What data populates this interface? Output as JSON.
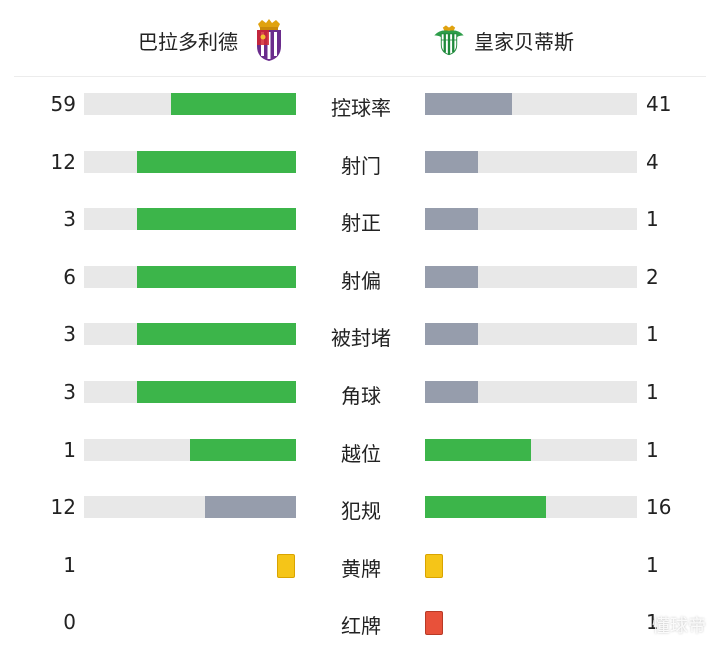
{
  "colors": {
    "win": "#3cb54a",
    "lose": "#969dac",
    "track": "#e8e8e8",
    "yellow": "#f5c518",
    "red": "#e8513a"
  },
  "header": {
    "home_team": "巴拉多利德",
    "away_team": "皇家贝蒂斯",
    "home_crest_icon": "real-valladolid-crest-icon",
    "away_crest_icon": "real-betis-crest-icon"
  },
  "stats": [
    {
      "label": "控球率",
      "home": "59",
      "away": "41",
      "home_fill": 0.59,
      "away_fill": 0.41,
      "home_color": "win",
      "away_color": "lose"
    },
    {
      "label": "射门",
      "home": "12",
      "away": "4",
      "home_fill": 0.75,
      "away_fill": 0.25,
      "home_color": "win",
      "away_color": "lose"
    },
    {
      "label": "射正",
      "home": "3",
      "away": "1",
      "home_fill": 0.75,
      "away_fill": 0.25,
      "home_color": "win",
      "away_color": "lose"
    },
    {
      "label": "射偏",
      "home": "6",
      "away": "2",
      "home_fill": 0.75,
      "away_fill": 0.25,
      "home_color": "win",
      "away_color": "lose"
    },
    {
      "label": "被封堵",
      "home": "3",
      "away": "1",
      "home_fill": 0.75,
      "away_fill": 0.25,
      "home_color": "win",
      "away_color": "lose"
    },
    {
      "label": "角球",
      "home": "3",
      "away": "1",
      "home_fill": 0.75,
      "away_fill": 0.25,
      "home_color": "win",
      "away_color": "lose"
    },
    {
      "label": "越位",
      "home": "1",
      "away": "1",
      "home_fill": 0.5,
      "away_fill": 0.5,
      "home_color": "win",
      "away_color": "win"
    },
    {
      "label": "犯规",
      "home": "12",
      "away": "16",
      "home_fill": 0.43,
      "away_fill": 0.57,
      "home_color": "lose",
      "away_color": "win"
    },
    {
      "label": "黄牌",
      "home": "1",
      "away": "1",
      "card": "yellow"
    },
    {
      "label": "红牌",
      "home": "0",
      "away": "1",
      "card": "red",
      "home_card": false,
      "away_card": true
    }
  ],
  "watermark": "懂球帝"
}
